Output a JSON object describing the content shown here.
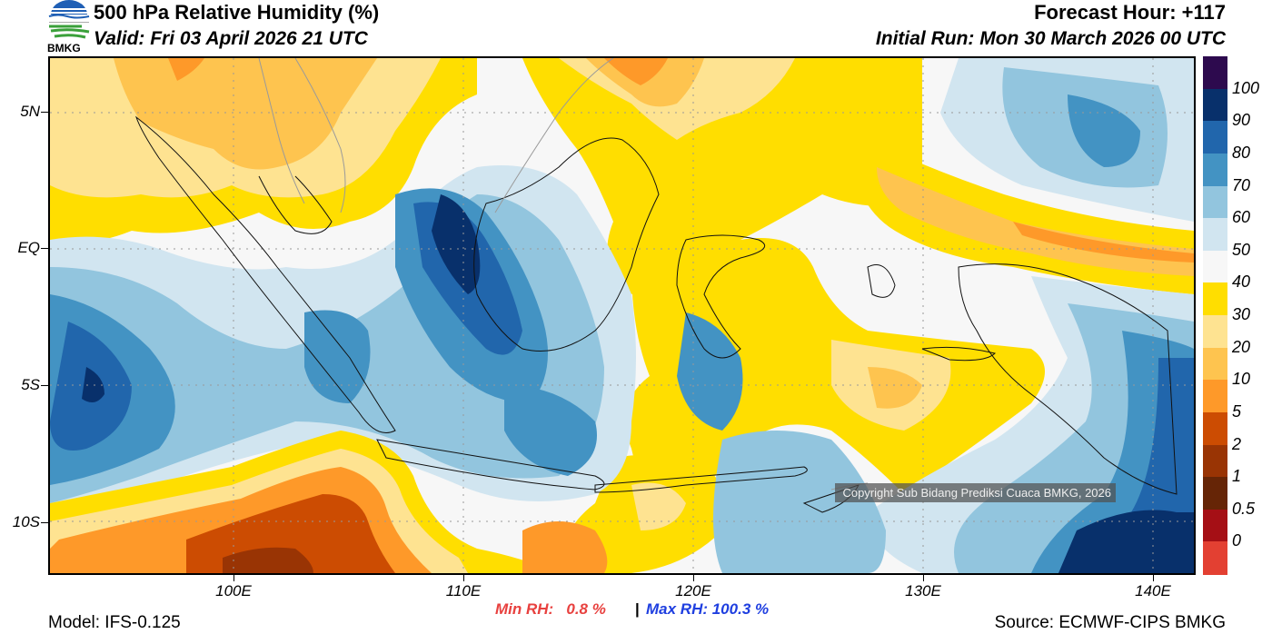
{
  "header": {
    "logo_text": "BMKG",
    "title": "500 hPa Relative Humidity (%)",
    "valid": "Valid: Fri 03 April 2026 21 UTC",
    "forecast_hour": "Forecast Hour: +117",
    "initial_run": "Initial Run: Mon 30 March 2026 00 UTC"
  },
  "map": {
    "lat_labels": [
      "5N",
      "EQ",
      "5S",
      "10S"
    ],
    "lon_labels": [
      "100E",
      "110E",
      "120E",
      "130E",
      "140E"
    ],
    "copyright": "Copyright Sub Bidang Prediksi Cuaca BMKG, 2026",
    "field_colors": {
      "rh_gt_100": "#2d0a4e",
      "rh_90_100": "#08306b",
      "rh_80_90": "#2166ac",
      "rh_70_80": "#4393c3",
      "rh_60_70": "#92c5de",
      "rh_50_60": "#d1e5f0",
      "rh_40_50": "#f7f7f7",
      "rh_30_40": "#ffde00",
      "rh_20_30": "#fee391",
      "rh_10_20": "#fec44f",
      "rh_5_10": "#fe9929",
      "rh_2_5": "#cc4c02",
      "rh_1_2": "#993404",
      "rh_05_1": "#662506",
      "rh_0_05": "#a50f15",
      "rh_lt_0": "#e34032"
    }
  },
  "colorbar": {
    "labels": [
      "100",
      "90",
      "80",
      "70",
      "60",
      "50",
      "40",
      "30",
      "20",
      "10",
      "5",
      "2",
      "1",
      "0.5",
      "0"
    ],
    "colors": [
      "#2d0a4e",
      "#08306b",
      "#2166ac",
      "#4393c3",
      "#92c5de",
      "#d1e5f0",
      "#f7f7f7",
      "#ffde00",
      "#fee391",
      "#fec44f",
      "#fe9929",
      "#cc4c02",
      "#993404",
      "#662506",
      "#a50f15",
      "#e34032"
    ]
  },
  "stats": {
    "min_rh": "Min RH:   0.8 %",
    "separator": "|",
    "max_rh": "Max RH: 100.3 %"
  },
  "footer": {
    "model": "Model: IFS-0.125",
    "source": "Source: ECMWF-CIPS BMKG"
  }
}
